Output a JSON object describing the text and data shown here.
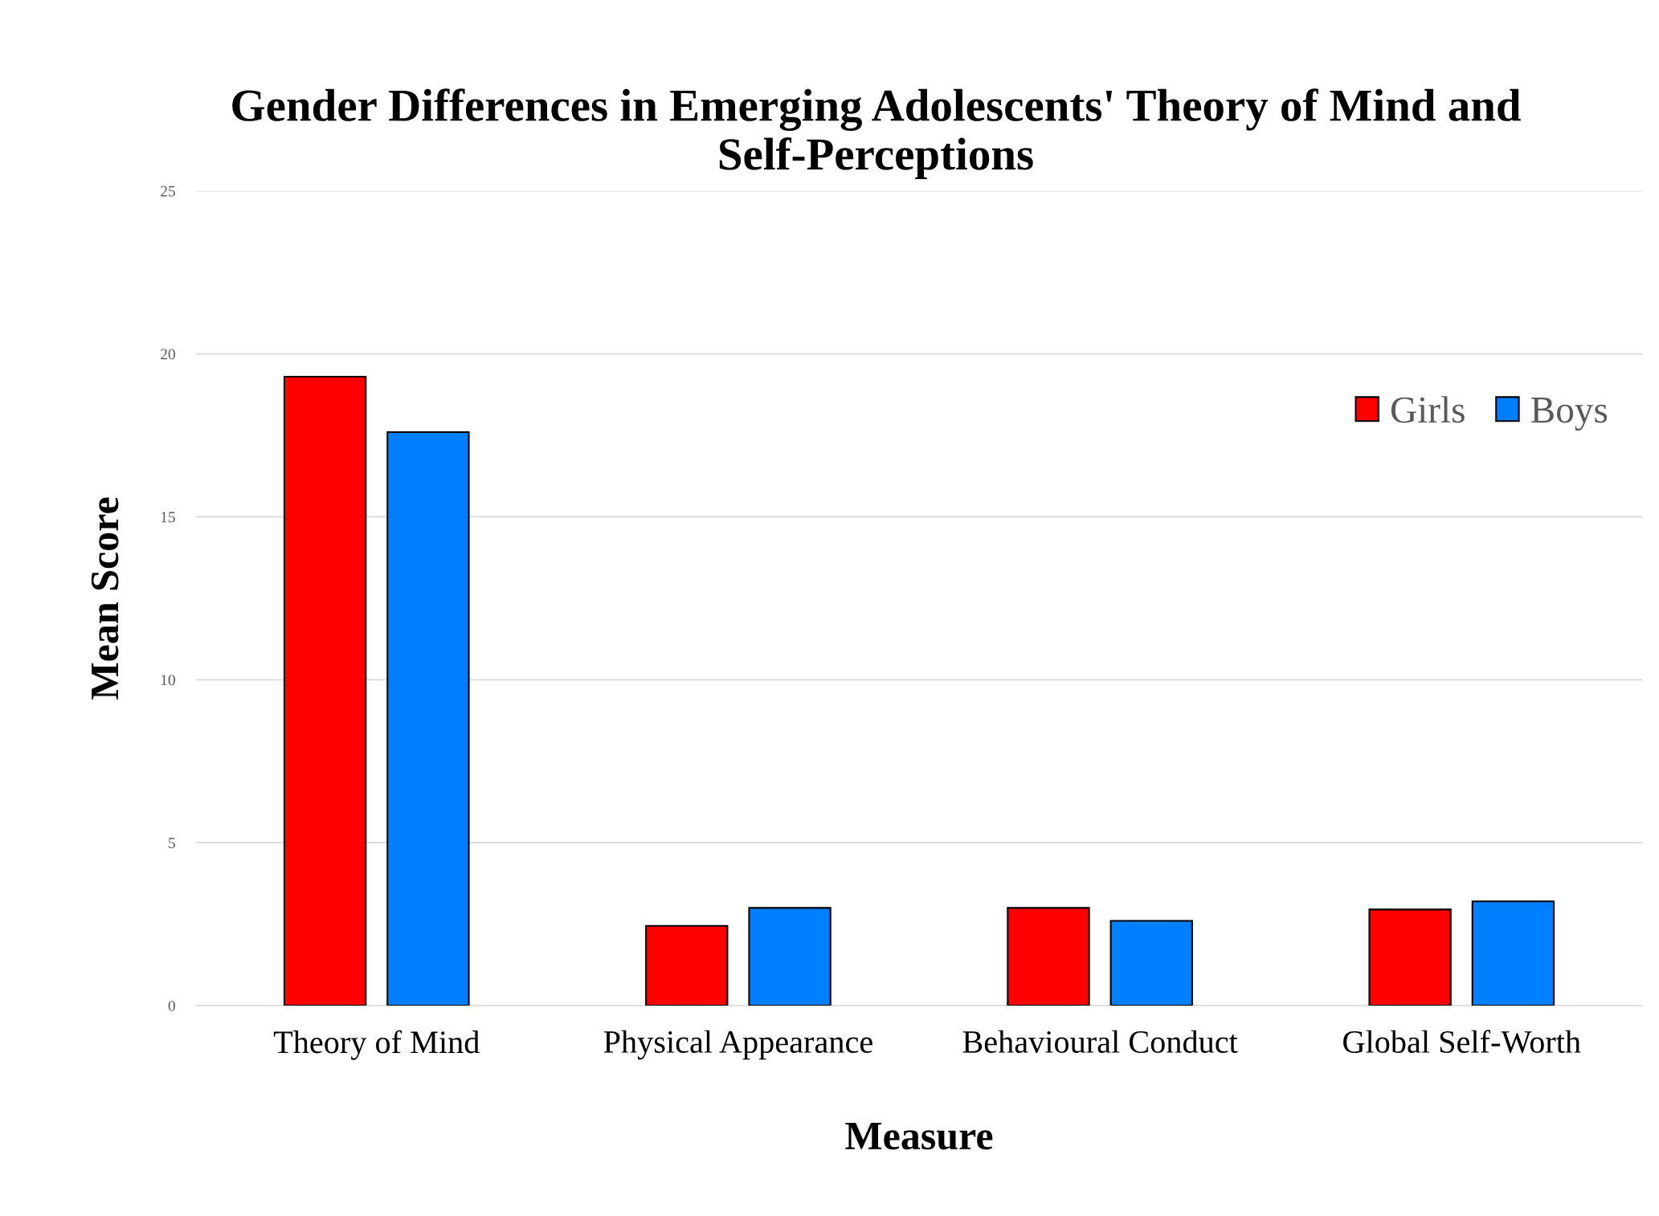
{
  "chart_data": {
    "type": "bar",
    "title": "Gender Differences in Emerging Adolescents' Theory of Mind and Self-Perceptions",
    "xlabel": "Measure",
    "ylabel": "Mean Score",
    "categories": [
      "Theory of Mind",
      "Physical Appearance",
      "Behavioural Conduct",
      "Global Self-Worth"
    ],
    "series": [
      {
        "name": "Girls",
        "color": "#ff0000",
        "values": [
          19.3,
          2.45,
          3.0,
          2.95
        ]
      },
      {
        "name": "Boys",
        "color": "#0080ff",
        "values": [
          17.6,
          3.0,
          2.6,
          3.2
        ]
      }
    ],
    "ylim": [
      0,
      25
    ],
    "yticks": [
      0,
      5,
      10,
      15,
      20,
      25
    ],
    "grid": "y",
    "legend": "top right"
  }
}
